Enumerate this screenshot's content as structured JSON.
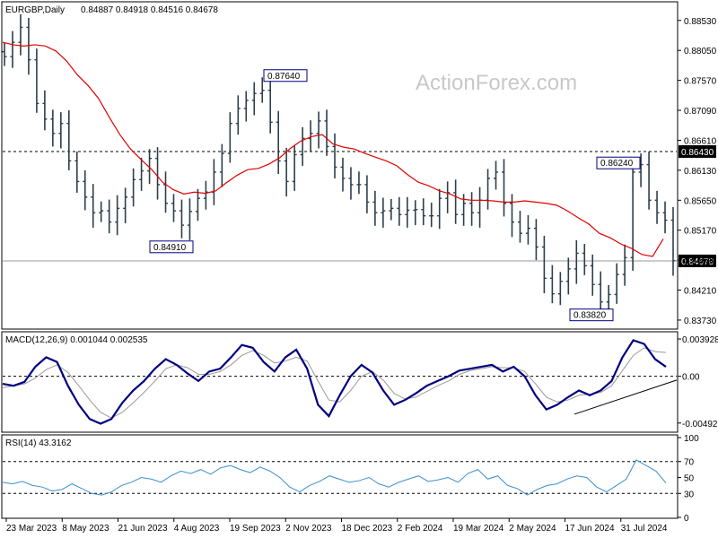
{
  "header": {
    "symbol": "EURGBP,Daily",
    "ohlc": "0.84887 0.84918 0.84516 0.84678"
  },
  "watermark": "ActionForex.com",
  "colors": {
    "bars": "#2d3f4a",
    "ma": "#e00000",
    "macd": "#000080",
    "signal": "#9a9a9a",
    "rsi": "#3a8fd0",
    "grid": "#000000"
  },
  "chart_data": [
    {
      "type": "ohlc",
      "series": [
        {
          "name": "EURGBP,Daily",
          "closes": [
            0.8795,
            0.8818,
            0.8842,
            0.879,
            0.872,
            0.8695,
            0.8672,
            0.8688,
            0.8628,
            0.8595,
            0.857,
            0.8545,
            0.8548,
            0.853,
            0.8552,
            0.857,
            0.8598,
            0.8612,
            0.8632,
            0.859,
            0.856,
            0.8548,
            0.8525,
            0.8547,
            0.8568,
            0.8578,
            0.861,
            0.864,
            0.8688,
            0.8712,
            0.8725,
            0.8736,
            0.8741,
            0.869,
            0.8628,
            0.8595,
            0.8638,
            0.8664,
            0.8672,
            0.8692,
            0.8651,
            0.8618,
            0.86,
            0.859,
            0.859,
            0.8562,
            0.8545,
            0.8548,
            0.8552,
            0.8542,
            0.8549,
            0.855,
            0.854,
            0.854,
            0.8568,
            0.8577,
            0.8542,
            0.856,
            0.8545,
            0.8565,
            0.86,
            0.861,
            0.856,
            0.853,
            0.8512,
            0.852,
            0.849,
            0.844,
            0.8415,
            0.8435,
            0.8455,
            0.848,
            0.846,
            0.843,
            0.8402,
            0.8414,
            0.8446,
            0.8473,
            0.861,
            0.8622,
            0.8565,
            0.8545,
            0.8533,
            0.8468
          ]
        },
        {
          "name": "MA",
          "values": [
            0.8818,
            0.8814,
            0.8812,
            0.8814,
            0.8812,
            0.8804,
            0.8788,
            0.8766,
            0.8749,
            0.8728,
            0.8698,
            0.867,
            0.8647,
            0.863,
            0.8614,
            0.8594,
            0.8582,
            0.8575,
            0.8578,
            0.8576,
            0.858,
            0.8593,
            0.8605,
            0.8614,
            0.8616,
            0.8623,
            0.8633,
            0.8648,
            0.866,
            0.8667,
            0.867,
            0.8655,
            0.865,
            0.8647,
            0.864,
            0.8634,
            0.8628,
            0.862,
            0.8606,
            0.8594,
            0.8588,
            0.858,
            0.8575,
            0.8567,
            0.8565,
            0.8565,
            0.8564,
            0.8562,
            0.8562,
            0.8564,
            0.8562,
            0.856,
            0.8557,
            0.8548,
            0.8537,
            0.8527,
            0.8512,
            0.8505,
            0.8495,
            0.8488,
            0.8478,
            0.8475,
            0.8503
          ]
        }
      ],
      "y_ticks": [
        "0.88530",
        "0.88050",
        "0.87570",
        "0.87090",
        "0.86610",
        "0.86130",
        "0.85650",
        "0.85170",
        "0.84690",
        "0.84210",
        "0.83730"
      ],
      "ylim": [
        0.836,
        0.888
      ],
      "annotations": [
        {
          "text": "0.87640",
          "value": 0.8764
        },
        {
          "text": "0.84910",
          "value": 0.8491
        },
        {
          "text": "0.83820",
          "value": 0.8382
        },
        {
          "text": "0.86240",
          "value": 0.8624
        }
      ],
      "levels": [
        {
          "text": "0.86430",
          "value": 0.8643,
          "style": "dashed"
        },
        {
          "text": "0.84678",
          "value": 0.84678,
          "style": "solid"
        }
      ]
    },
    {
      "type": "line",
      "title": "MACD(12,26,9) 0.001044 0.002535",
      "series": [
        {
          "name": "MACD",
          "values": [
            -0.0008,
            -0.001,
            -0.0006,
            0.001,
            0.002,
            0.0015,
            -0.001,
            -0.003,
            -0.0045,
            -0.005,
            -0.0045,
            -0.0028,
            -0.0015,
            -0.0005,
            0.0008,
            0.0018,
            0.0012,
            0.0003,
            -0.0005,
            0.0005,
            0.0008,
            0.002,
            0.0033,
            0.003,
            0.0015,
            0.0005,
            0.002,
            0.0028,
            0.0008,
            -0.003,
            -0.0042,
            -0.002,
            0.0,
            0.0012,
            0.0004,
            -0.0015,
            -0.003,
            -0.0025,
            -0.0018,
            -0.001,
            -0.0005,
            0.0,
            0.0006,
            0.0008,
            0.001,
            0.0012,
            0.0005,
            0.001,
            0.0,
            -0.002,
            -0.0035,
            -0.003,
            -0.0022,
            -0.0015,
            -0.002,
            -0.0015,
            -0.0005,
            0.002,
            0.0038,
            0.0034,
            0.0018,
            0.001
          ]
        },
        {
          "name": "Signal",
          "values": [
            -0.0012,
            -0.001,
            -0.0008,
            -0.0002,
            0.0007,
            0.0012,
            0.0004,
            -0.001,
            -0.0025,
            -0.0038,
            -0.0044,
            -0.0038,
            -0.0028,
            -0.0017,
            -0.0005,
            0.0008,
            0.0012,
            0.0009,
            0.0002,
            0.0002,
            0.0005,
            0.0012,
            0.0022,
            0.0027,
            0.0022,
            0.0014,
            0.0016,
            0.002,
            0.0016,
            -0.0005,
            -0.0025,
            -0.0027,
            -0.0015,
            0.0,
            0.0005,
            -0.0004,
            -0.0018,
            -0.0024,
            -0.0022,
            -0.0016,
            -0.001,
            -0.0005,
            0.0002,
            0.0006,
            0.0008,
            0.001,
            0.0009,
            0.0009,
            0.0005,
            -0.0008,
            -0.0022,
            -0.0027,
            -0.0025,
            -0.002,
            -0.0019,
            -0.0017,
            -0.001,
            0.0006,
            0.0022,
            0.003,
            0.0026,
            0.0025
          ]
        }
      ],
      "y_ticks": [
        "0.003928",
        "0.00",
        "-0.004929"
      ],
      "ylim": [
        -0.0058,
        0.0045
      ],
      "trendline": [
        -0.004,
        0.0
      ]
    },
    {
      "type": "line",
      "title": "RSI(14) 43.3162",
      "series": [
        {
          "name": "RSI",
          "values": [
            44,
            42,
            45,
            40,
            38,
            33,
            35,
            42,
            36,
            30,
            28,
            32,
            40,
            44,
            50,
            48,
            44,
            52,
            58,
            55,
            60,
            54,
            62,
            65,
            60,
            56,
            63,
            58,
            50,
            38,
            32,
            40,
            45,
            52,
            48,
            44,
            46,
            50,
            42,
            38,
            44,
            48,
            52,
            45,
            47,
            50,
            44,
            55,
            60,
            48,
            52,
            40,
            36,
            28,
            35,
            40,
            42,
            48,
            52,
            50,
            38,
            32,
            40,
            48,
            72,
            65,
            58,
            43
          ]
        }
      ],
      "y_ticks": [
        "100",
        "70",
        "50",
        "30",
        "0"
      ],
      "ylim": [
        0,
        100
      ]
    }
  ],
  "x_axis": {
    "labels": [
      "23 Mar 2023",
      "8 May 2023",
      "21 Jun 2023",
      "4 Aug 2023",
      "19 Sep 2023",
      "2 Nov 2023",
      "18 Dec 2023",
      "2 Feb 2024",
      "19 Mar 2024",
      "2 May 2024",
      "17 Jun 2024",
      "31 Jul 2024"
    ]
  }
}
